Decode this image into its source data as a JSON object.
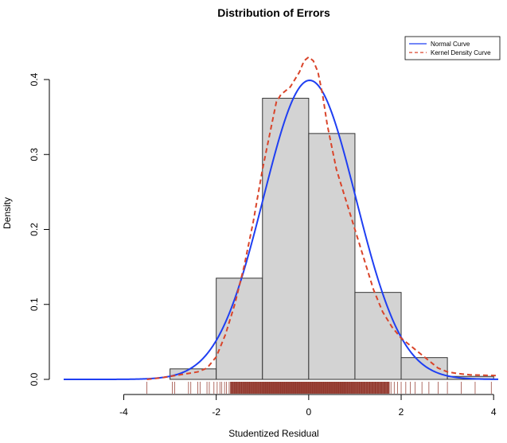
{
  "chart_data": {
    "type": "histogram",
    "title": "Distribution of Errors",
    "xlabel": "Studentized Residual",
    "ylabel": "Density",
    "xlim": [
      -5.3,
      4.1
    ],
    "ylim": [
      0,
      0.41
    ],
    "x_ticks": [
      -4,
      -2,
      0,
      2,
      4
    ],
    "x_tick_labels": [
      "-4",
      "-2",
      "0",
      "2",
      "4"
    ],
    "y_ticks": [
      0.0,
      0.1,
      0.2,
      0.3,
      0.4
    ],
    "y_tick_labels": [
      "0.0",
      "0.1",
      "0.2",
      "0.3",
      "0.4"
    ],
    "grid": false,
    "histogram": {
      "bins": [
        {
          "x0": -3,
          "x1": -2,
          "density": 0.014
        },
        {
          "x0": -2,
          "x1": -1,
          "density": 0.135
        },
        {
          "x0": -1,
          "x1": 0,
          "density": 0.375
        },
        {
          "x0": 0,
          "x1": 1,
          "density": 0.328
        },
        {
          "x0": 1,
          "x1": 2,
          "density": 0.116
        },
        {
          "x0": 2,
          "x1": 3,
          "density": 0.029
        },
        {
          "x0": 3,
          "x1": 4,
          "density": 0.004
        }
      ],
      "fill": "#d3d3d3",
      "stroke": "#333333"
    },
    "normal_curve": {
      "name": "Normal Curve",
      "color": "#1f3ff2",
      "mean": 0.02,
      "sd": 1.0,
      "x_range": [
        -5.3,
        4.1
      ]
    },
    "kernel_density": {
      "name": "Kernel Density Curve",
      "color": "#d9442a",
      "x": [
        -3.5,
        -3.2,
        -3.0,
        -2.8,
        -2.6,
        -2.4,
        -2.2,
        -2.0,
        -1.8,
        -1.6,
        -1.4,
        -1.2,
        -1.0,
        -0.9,
        -0.8,
        -0.7,
        -0.6,
        -0.5,
        -0.4,
        -0.3,
        -0.2,
        -0.1,
        0.0,
        0.1,
        0.2,
        0.3,
        0.4,
        0.5,
        0.6,
        0.7,
        0.8,
        0.9,
        1.0,
        1.2,
        1.4,
        1.6,
        1.8,
        2.0,
        2.2,
        2.4,
        2.6,
        2.8,
        3.0,
        3.2,
        3.5,
        4.1
      ],
      "y": [
        0.0,
        0.002,
        0.004,
        0.006,
        0.008,
        0.01,
        0.015,
        0.03,
        0.06,
        0.1,
        0.15,
        0.21,
        0.28,
        0.31,
        0.34,
        0.37,
        0.38,
        0.385,
        0.39,
        0.4,
        0.41,
        0.425,
        0.43,
        0.425,
        0.41,
        0.38,
        0.34,
        0.31,
        0.28,
        0.26,
        0.24,
        0.22,
        0.2,
        0.16,
        0.12,
        0.09,
        0.07,
        0.055,
        0.045,
        0.035,
        0.025,
        0.015,
        0.01,
        0.008,
        0.006,
        0.005
      ]
    },
    "legend": {
      "position": "top-right",
      "entries": [
        {
          "label": "Normal Curve",
          "color": "#1f3ff2",
          "style": "solid"
        },
        {
          "label": "Kernel Density Curve",
          "color": "#d9442a",
          "style": "dashed"
        }
      ]
    },
    "rug": {
      "color": "#8b2a1f",
      "x": [
        -3.5,
        -2.95,
        -2.9,
        -2.6,
        -2.55,
        -2.4,
        -2.35,
        -2.2,
        -2.15,
        -2.05,
        -1.98,
        -1.92,
        -1.88,
        -1.82,
        -1.78,
        -1.72,
        -1.66,
        -1.6,
        -1.56,
        -1.5,
        -1.45,
        -1.4,
        -1.36,
        -1.32,
        -1.28,
        -1.24,
        -1.2,
        -1.16,
        -1.12,
        -1.08,
        -1.04,
        -1.0,
        -0.97,
        -0.94,
        -0.91,
        -0.88,
        -0.85,
        -0.82,
        -0.79,
        -0.76,
        -0.73,
        -0.7,
        -0.67,
        -0.64,
        -0.61,
        -0.58,
        -0.55,
        -0.52,
        -0.49,
        -0.46,
        -0.43,
        -0.4,
        -0.37,
        -0.34,
        -0.31,
        -0.28,
        -0.25,
        -0.22,
        -0.19,
        -0.16,
        -0.13,
        -0.1,
        -0.07,
        -0.04,
        -0.01,
        0.02,
        0.05,
        0.08,
        0.11,
        0.14,
        0.17,
        0.2,
        0.23,
        0.26,
        0.29,
        0.32,
        0.35,
        0.38,
        0.41,
        0.44,
        0.47,
        0.5,
        0.53,
        0.56,
        0.59,
        0.62,
        0.65,
        0.68,
        0.71,
        0.74,
        0.77,
        0.8,
        0.84,
        0.88,
        0.92,
        0.96,
        1.0,
        1.05,
        1.1,
        1.15,
        1.2,
        1.26,
        1.32,
        1.38,
        1.44,
        1.5,
        1.57,
        1.64,
        1.71,
        1.78,
        1.85,
        1.92,
        2.0,
        2.1,
        2.2,
        2.3,
        2.45,
        2.6,
        2.8,
        3.0,
        3.3,
        3.6,
        3.95
      ]
    }
  }
}
